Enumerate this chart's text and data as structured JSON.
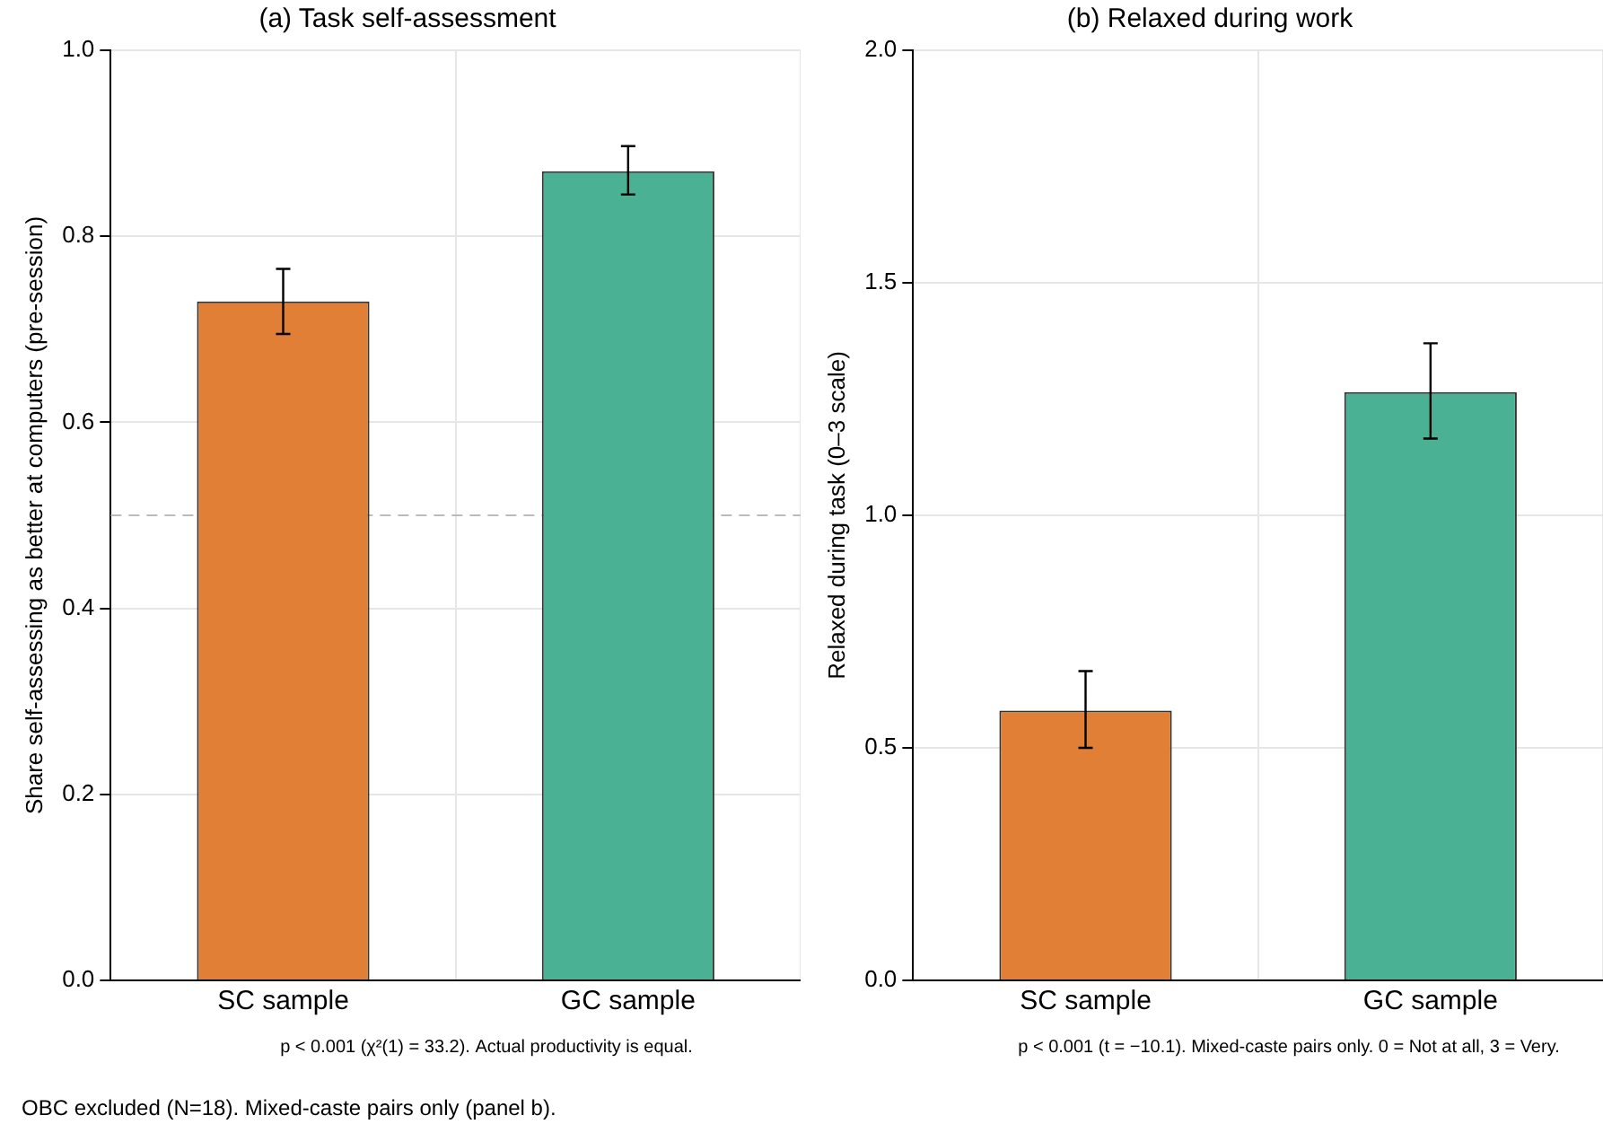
{
  "chart_data": [
    {
      "type": "bar",
      "title": "(a) Task self-assessment",
      "ylabel": "Share self-assessing as better at computers (pre-session)",
      "categories": [
        "SC sample",
        "GC sample"
      ],
      "series": [
        {
          "colors": [
            "#e07f35",
            "#4bb194"
          ],
          "values": [
            0.73,
            0.87
          ],
          "errors": [
            [
              0.695,
              0.765
            ],
            [
              0.845,
              0.897
            ]
          ]
        }
      ],
      "ylim": [
        0,
        1
      ],
      "yticks": [
        {
          "value": 0,
          "label": "0.0"
        },
        0.2,
        0.4,
        0.6,
        0.8,
        {
          "value": 1,
          "label": "1.0"
        }
      ],
      "grid": true,
      "legend": false,
      "ref_lines": [
        {
          "axis": "y",
          "value": 0.5,
          "color": "#bbbbbb",
          "line_style": "dashed"
        }
      ],
      "annotations": [
        "p < 0.001 (χ²(1) = 33.2). Actual productivity is equal.",
        "OBC excluded (N=18). Mixed-caste pairs only (panel b)."
      ]
    },
    {
      "type": "bar",
      "title": "(b) Relaxed during work",
      "ylabel": "Relaxed during task (0–3 scale)",
      "categories": [
        "SC sample",
        "GC sample"
      ],
      "series": [
        {
          "colors": [
            "#e07f35",
            "#4bb194"
          ],
          "values": [
            0.58,
            1.265
          ],
          "errors": [
            [
              0.5,
              0.665
            ],
            [
              1.165,
              1.37
            ]
          ]
        }
      ],
      "ylim": [
        0,
        2
      ],
      "yticks": [
        {
          "value": 0,
          "label": "0.0"
        },
        0.5,
        {
          "value": 1,
          "label": "1.0"
        },
        1.5,
        {
          "value": 2,
          "label": "2.0"
        }
      ],
      "grid": true,
      "legend": false,
      "annotations": [
        "p < 0.001 (t = −10.1). Mixed-caste pairs only. 0 = Not at all, 3 = Very."
      ]
    }
  ]
}
